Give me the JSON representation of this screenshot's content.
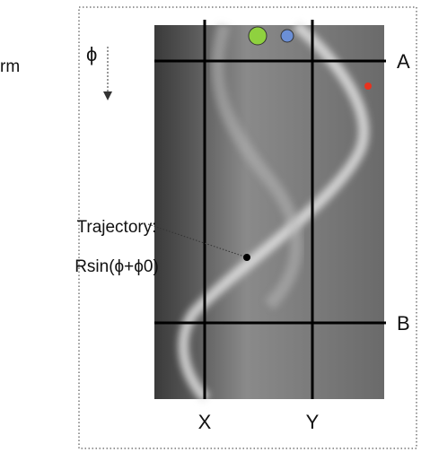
{
  "labels": {
    "corner": "rm",
    "phi": "ϕ",
    "a": "A",
    "b": "B",
    "x": "X",
    "y": "Y",
    "trajectory": "Trajectory:",
    "formula": "Rsin(ϕ+ϕ0)"
  }
}
